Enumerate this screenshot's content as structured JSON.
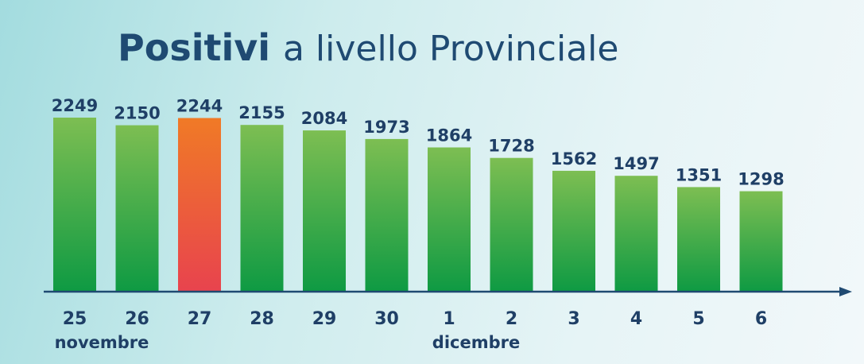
{
  "chart_data": {
    "type": "bar",
    "title": {
      "bold": "Positivi",
      "rest": "a livello Provinciale"
    },
    "categories": [
      "25",
      "26",
      "27",
      "28",
      "29",
      "30",
      "1",
      "2",
      "3",
      "4",
      "5",
      "6"
    ],
    "month_labels": [
      {
        "label": "novembre",
        "under_category": "25"
      },
      {
        "label": "dicembre",
        "under_category": "1"
      }
    ],
    "values": [
      2249,
      2150,
      2244,
      2155,
      2084,
      1973,
      1864,
      1728,
      1562,
      1497,
      1351,
      1298
    ],
    "highlight_category": "27",
    "ylim": [
      0,
      2249
    ],
    "grid": false,
    "xlabel": "",
    "ylabel": "",
    "colors": {
      "bar_top": "#7dbe52",
      "bar_bottom": "#0e9a43",
      "highlight_top": "#f07a26",
      "highlight_bottom": "#e8434e",
      "axis": "#1f4a72",
      "text": "#1f3f66"
    }
  }
}
